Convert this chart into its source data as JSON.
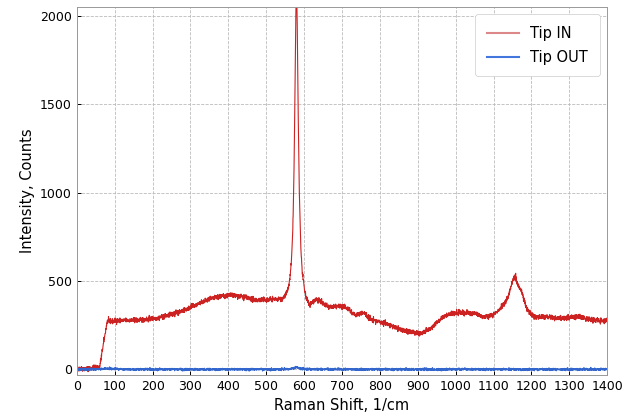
{
  "title": "",
  "xlabel": "Raman Shift, 1/cm",
  "ylabel": "Intensity, Counts",
  "xlim": [
    0,
    1400
  ],
  "ylim": [
    -30,
    2050
  ],
  "xticks": [
    0,
    100,
    200,
    300,
    400,
    500,
    600,
    700,
    800,
    900,
    1000,
    1100,
    1200,
    1300,
    1400
  ],
  "yticks": [
    0,
    500,
    1000,
    1500,
    2000
  ],
  "tip_in_color": "#cc2222",
  "tip_out_color": "#3366cc",
  "legend_labels": [
    "Tip IN",
    "Tip OUT"
  ],
  "legend_tip_in_color": "#dd8888",
  "legend_tip_out_color": "#4477dd",
  "background_color": "#ffffff",
  "grid_color": "#bbbbbb",
  "linewidth_in": 0.8,
  "linewidth_out": 0.9,
  "seed": 42,
  "figsize": [
    6.3,
    4.2
  ],
  "dpi": 100
}
